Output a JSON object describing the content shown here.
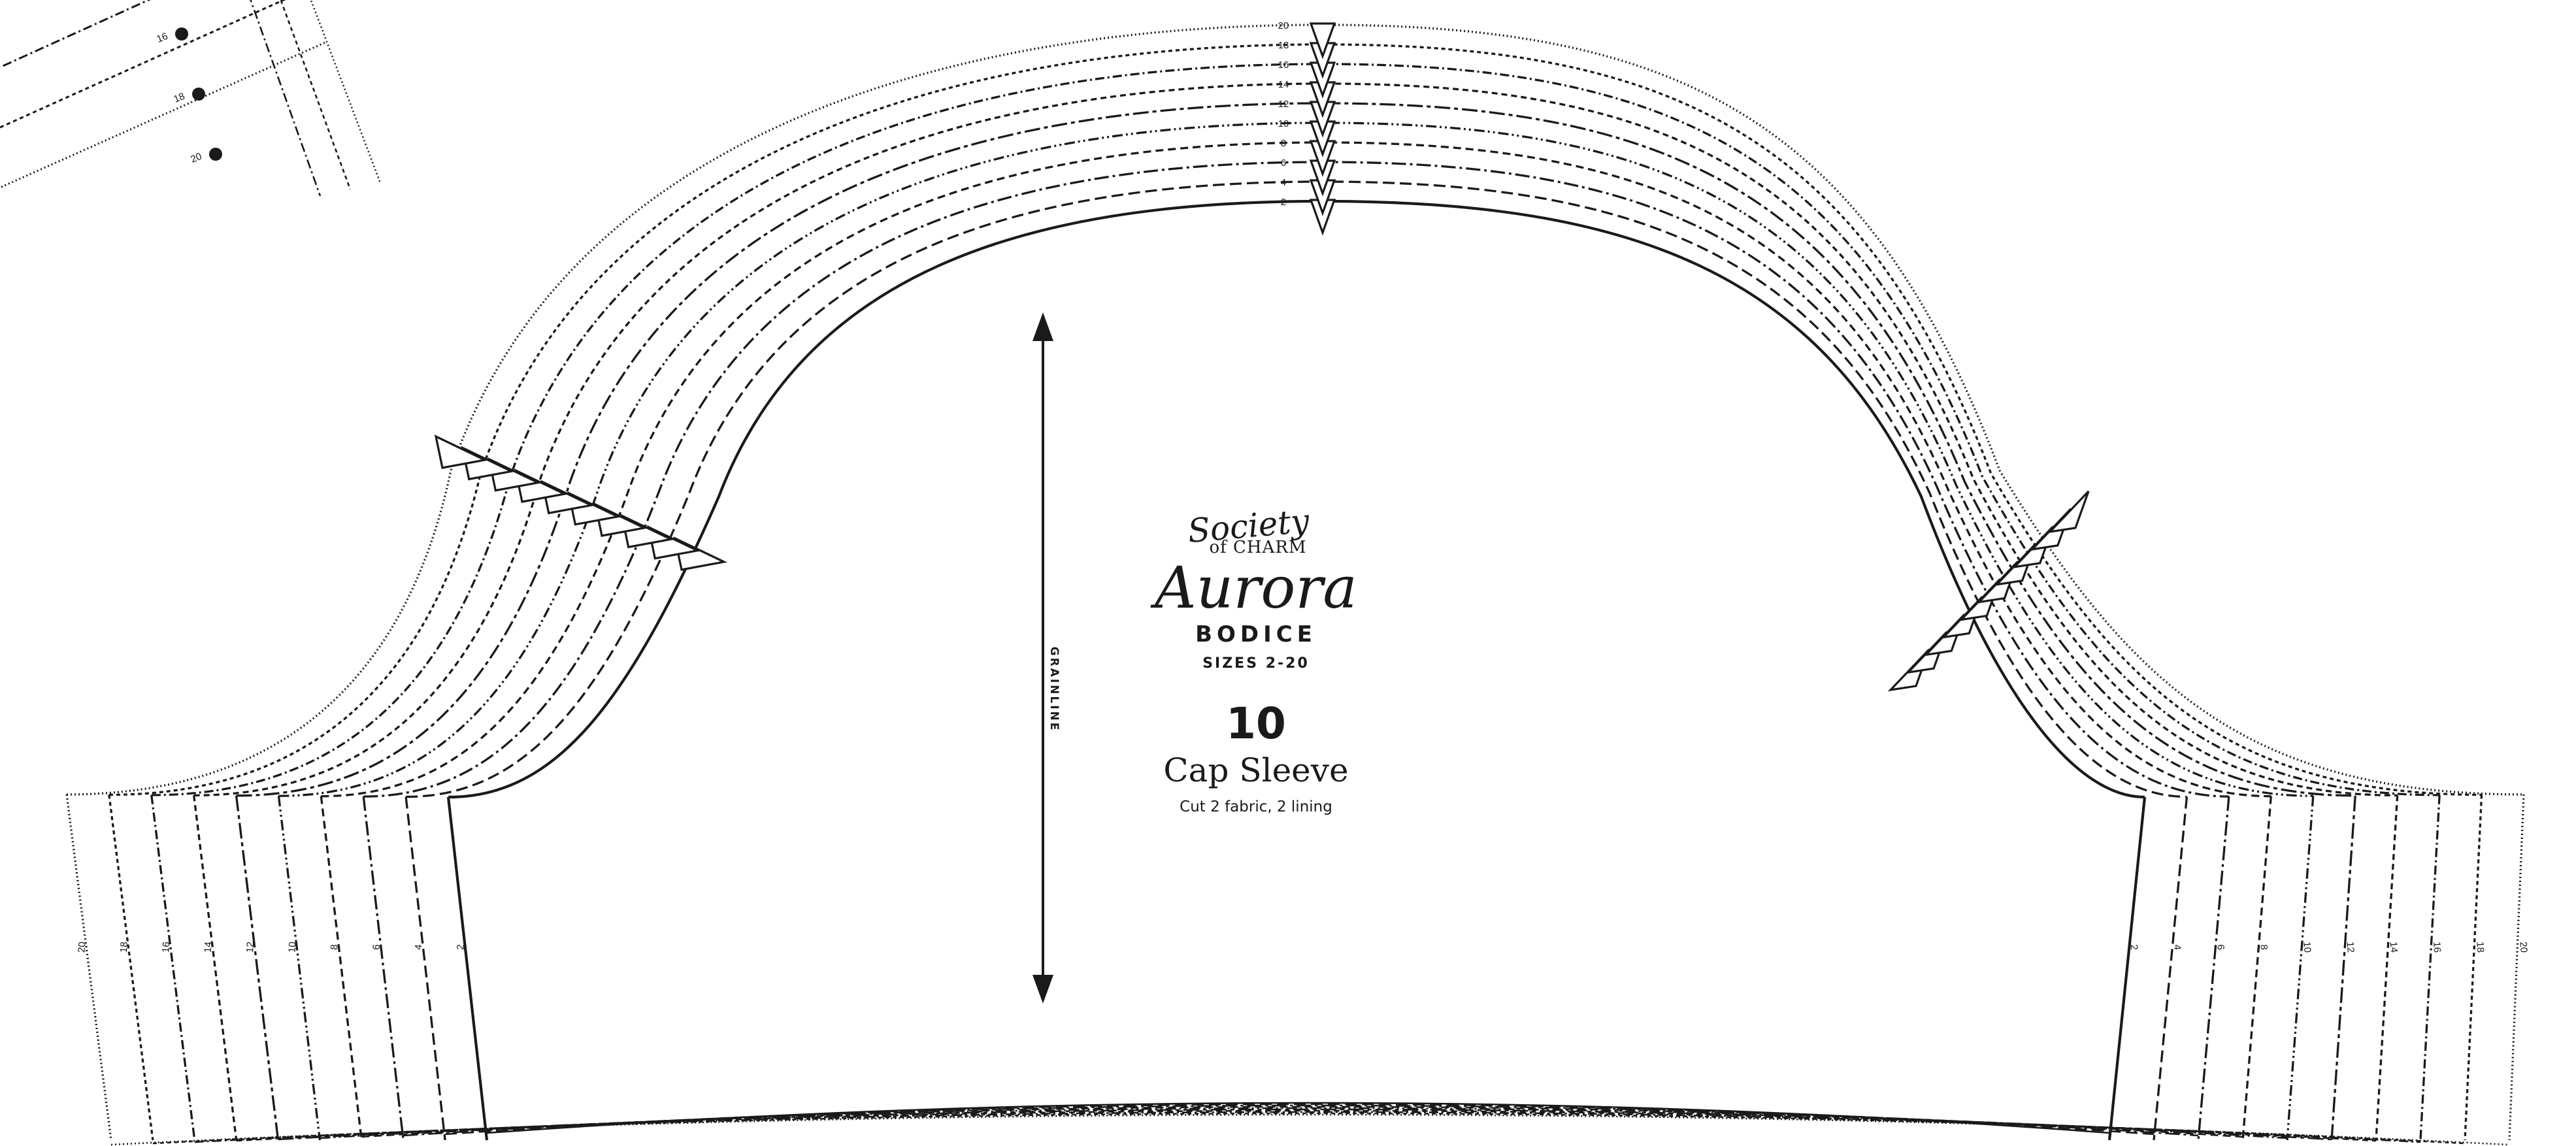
{
  "brand": {
    "line1": "Society",
    "line2": "of CHARM"
  },
  "pattern": {
    "collection": "Aurora",
    "garment": "BODICE",
    "size_range": "SIZES 2-20",
    "piece_number": "10",
    "piece_name": "Cap Sleeve",
    "cutting": "Cut 2 fabric, 2 lining",
    "grainline": "GRAINLINE"
  },
  "sizes": [
    "2",
    "4",
    "6",
    "8",
    "10",
    "12",
    "14",
    "16",
    "18",
    "20"
  ],
  "corner_piece_sizes": [
    "16",
    "18",
    "20"
  ],
  "line_styles": [
    {
      "size": "2",
      "dash": ""
    },
    {
      "size": "4",
      "dash": "18 8"
    },
    {
      "size": "6",
      "dash": "22 6 4 6"
    },
    {
      "size": "8",
      "dash": "12 7"
    },
    {
      "size": "10",
      "dash": "16 5 3 5 3 5"
    },
    {
      "size": "12",
      "dash": "24 6 6 6"
    },
    {
      "size": "14",
      "dash": "9 6"
    },
    {
      "size": "16",
      "dash": "14 5 3 5"
    },
    {
      "size": "18",
      "dash": "6 5"
    },
    {
      "size": "20",
      "dash": "2 4"
    }
  ]
}
